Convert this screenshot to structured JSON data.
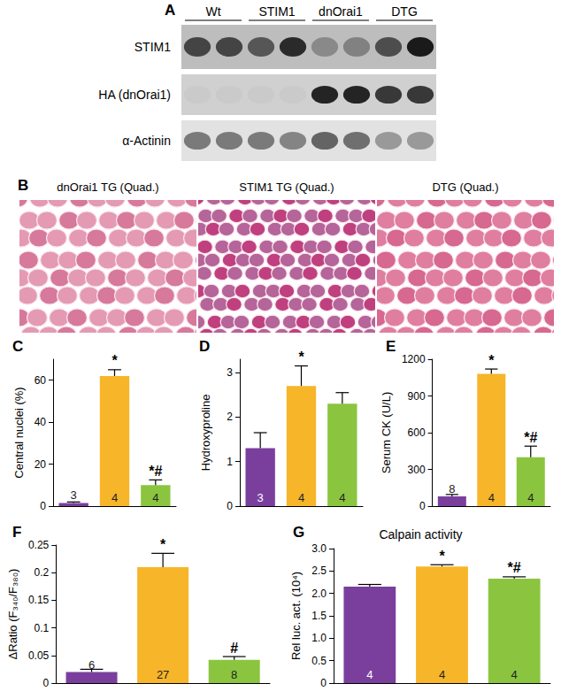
{
  "figure": {
    "blot": {
      "panel": "A",
      "groups": [
        "Wt",
        "STIM1",
        "dnOrai1",
        "DTG"
      ],
      "rows": [
        {
          "label": "STIM1",
          "bands": [
            0.7,
            0.7,
            0.6,
            0.85,
            0.3,
            0.35,
            0.65,
            0.95
          ]
        },
        {
          "label": "HA (dnOrai1)",
          "bands": [
            0.03,
            0.03,
            0.03,
            0.03,
            0.9,
            0.9,
            0.8,
            0.8
          ]
        },
        {
          "label": "α-Actinin",
          "bands": [
            0.5,
            0.5,
            0.5,
            0.45,
            0.6,
            0.55,
            0.35,
            0.35
          ]
        }
      ]
    },
    "histology": {
      "panel": "B",
      "images": [
        "dnOrai1 TG (Quad.)",
        "STIM1 TG (Quad.)",
        "DTG (Quad.)"
      ]
    }
  },
  "chart_data": [
    {
      "panel": "C",
      "type": "bar",
      "y_label": "Central nuclei (%)",
      "values": [
        1.5,
        62,
        10
      ],
      "errors": [
        0.5,
        3,
        2.5
      ],
      "n": [
        3,
        4,
        4
      ],
      "annotations": [
        null,
        "*",
        "*#"
      ],
      "colors": [
        "#7a3f9d",
        "#f7b52a",
        "#8bc53f"
      ],
      "ylim": [
        0,
        70
      ],
      "yticks": [
        0,
        20,
        40,
        60
      ],
      "grid": false,
      "tick_labels": "y"
    },
    {
      "panel": "D",
      "type": "bar",
      "y_label": "Hydroxyproline",
      "values": [
        1.3,
        2.7,
        2.3
      ],
      "errors": [
        0.35,
        0.45,
        0.25
      ],
      "n": [
        3,
        4,
        4
      ],
      "annotations": [
        null,
        "*",
        null
      ],
      "colors": [
        "#7a3f9d",
        "#f7b52a",
        "#8bc53f"
      ],
      "ylim": [
        0,
        3.3
      ],
      "yticks": [
        0,
        1,
        2,
        3
      ],
      "grid": false,
      "tick_labels": "y"
    },
    {
      "panel": "E",
      "type": "bar",
      "y_label": "Serum CK (U/L)",
      "values": [
        80,
        1080,
        400
      ],
      "errors": [
        15,
        40,
        90
      ],
      "n": [
        8,
        4,
        4
      ],
      "annotations": [
        null,
        "*",
        "*#"
      ],
      "colors": [
        "#7a3f9d",
        "#f7b52a",
        "#8bc53f"
      ],
      "ylim": [
        0,
        1200
      ],
      "yticks": [
        0,
        300,
        600,
        900,
        1200
      ],
      "grid": false,
      "tick_labels": "y"
    },
    {
      "panel": "F",
      "type": "bar",
      "y_label": "ΔRatio (F₃₄₀/F₃₈₀)",
      "values": [
        0.02,
        0.21,
        0.042
      ],
      "errors": [
        0.005,
        0.025,
        0.006
      ],
      "n": [
        6,
        27,
        8
      ],
      "annotations": [
        null,
        "*",
        "#"
      ],
      "colors": [
        "#7a3f9d",
        "#f7b52a",
        "#8bc53f"
      ],
      "ylim": [
        0,
        0.25
      ],
      "yticks": [
        0,
        0.05,
        0.1,
        0.15,
        0.2,
        0.25
      ],
      "grid": false,
      "tick_labels": "y"
    },
    {
      "panel": "G",
      "type": "bar",
      "title": "Calpain activity",
      "y_label": "Rel luc. act. (10⁴)",
      "values": [
        2.15,
        2.6,
        2.33
      ],
      "errors": [
        0.05,
        0.04,
        0.04
      ],
      "n": [
        4,
        4,
        4
      ],
      "annotations": [
        null,
        "*",
        "*#"
      ],
      "colors": [
        "#7a3f9d",
        "#f7b52a",
        "#8bc53f"
      ],
      "ylim": [
        0,
        3
      ],
      "yticks": [
        0,
        0.5,
        {
          "value": 1,
          "label": "1.0"
        },
        1.5,
        {
          "value": 2,
          "label": "2.0"
        },
        2.5,
        {
          "value": 3,
          "label": "3.0"
        }
      ],
      "grid": false,
      "tick_labels": "y"
    }
  ]
}
